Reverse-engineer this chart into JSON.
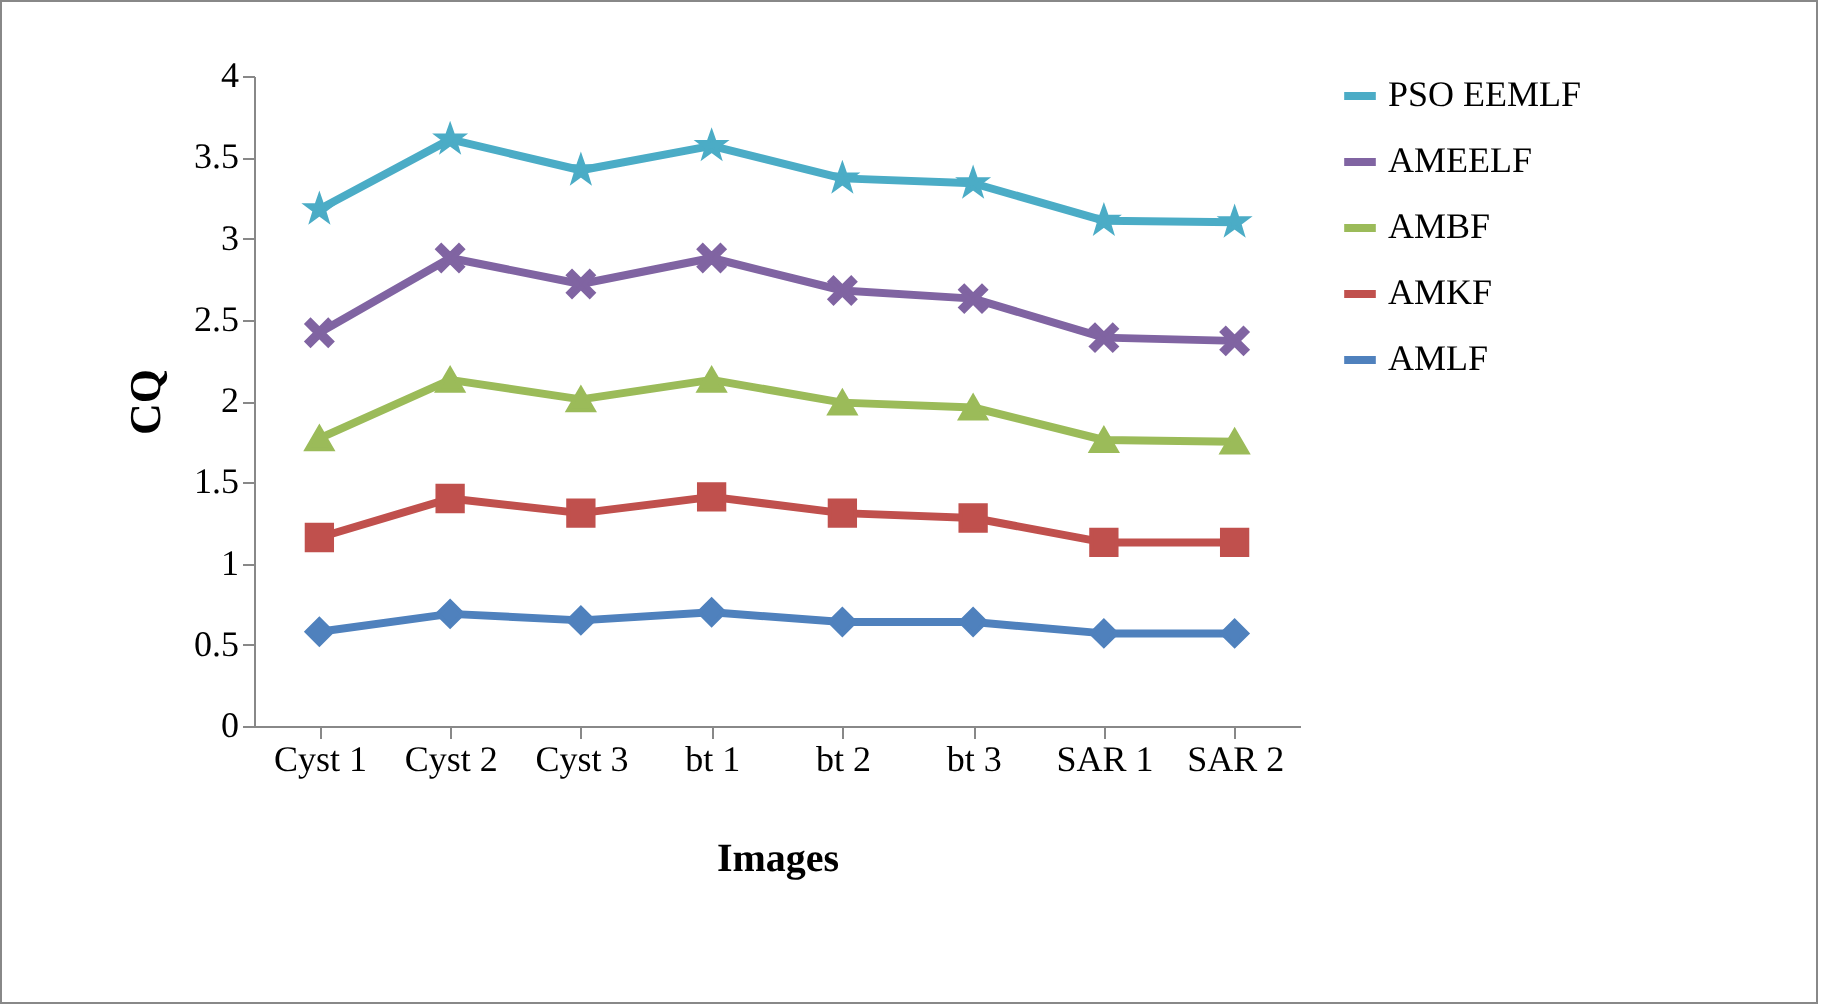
{
  "chart_data": {
    "type": "line",
    "xlabel": "Images",
    "ylabel": "CQ",
    "categories": [
      "Cyst 1",
      "Cyst 2",
      "Cyst 3",
      "bt  1",
      "bt 2",
      "bt 3",
      "SAR 1",
      "SAR 2"
    ],
    "ylim": [
      0,
      4
    ],
    "yticks": [
      0,
      0.5,
      1,
      1.5,
      2,
      2.5,
      3,
      3.5,
      4
    ],
    "legend": "right",
    "grid": false,
    "series": [
      {
        "name": "PSO EEMLF",
        "color": "#4bacc6",
        "marker": "star",
        "values": [
          3.18,
          3.61,
          3.42,
          3.57,
          3.37,
          3.34,
          3.11,
          3.1
        ]
      },
      {
        "name": "AMEELF",
        "color": "#8064a2",
        "marker": "cross",
        "values": [
          2.42,
          2.88,
          2.72,
          2.88,
          2.68,
          2.63,
          2.39,
          2.37
        ]
      },
      {
        "name": "AMBF",
        "color": "#9bbb59",
        "marker": "triangle",
        "values": [
          1.77,
          2.13,
          2.01,
          2.13,
          1.99,
          1.96,
          1.76,
          1.75
        ]
      },
      {
        "name": "AMKF",
        "color": "#c0504d",
        "marker": "square",
        "values": [
          1.16,
          1.4,
          1.31,
          1.41,
          1.31,
          1.28,
          1.13,
          1.13
        ]
      },
      {
        "name": "AMLF",
        "color": "#4f81bd",
        "marker": "diamond",
        "values": [
          0.58,
          0.69,
          0.65,
          0.7,
          0.64,
          0.64,
          0.57,
          0.57
        ]
      }
    ]
  }
}
